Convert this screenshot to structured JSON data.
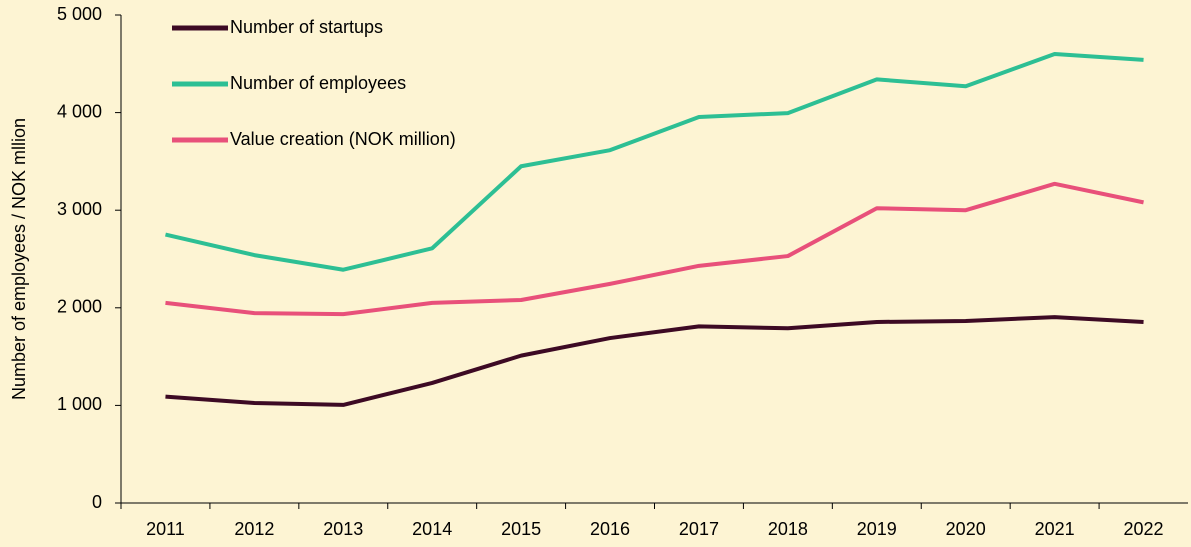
{
  "chart_data": {
    "type": "line",
    "y_label": "Number of employees / NOK mllion",
    "categories": [
      "2011",
      "2012",
      "2013",
      "2014",
      "2015",
      "2016",
      "2017",
      "2018",
      "2019",
      "2020",
      "2021",
      "2022"
    ],
    "series": [
      {
        "name": "Number of startups",
        "color": "#3d0a24",
        "values": [
          1090,
          1025,
          1005,
          1230,
          1510,
          1690,
          1810,
          1790,
          1855,
          1865,
          1905,
          1855
        ]
      },
      {
        "name": "Number of employees",
        "color": "#2dbf94",
        "values": [
          2750,
          2540,
          2390,
          2610,
          3450,
          3615,
          3955,
          3995,
          4340,
          4270,
          4600,
          4540
        ]
      },
      {
        "name": "Value creation (NOK million)",
        "color": "#e8507a",
        "values": [
          2050,
          1945,
          1935,
          2050,
          2080,
          2245,
          2430,
          2530,
          3020,
          3000,
          3270,
          3080
        ]
      }
    ],
    "ylim": [
      0,
      5000
    ],
    "yticks": [
      0,
      {
        "value": 1000,
        "label": "1 000"
      },
      {
        "value": 2000,
        "label": "2 000"
      },
      {
        "value": 3000,
        "label": "3 000"
      },
      {
        "value": 4000,
        "label": "4 000"
      },
      {
        "value": 5000,
        "label": "5 000"
      }
    ],
    "grid": false,
    "legend": "upper left"
  }
}
